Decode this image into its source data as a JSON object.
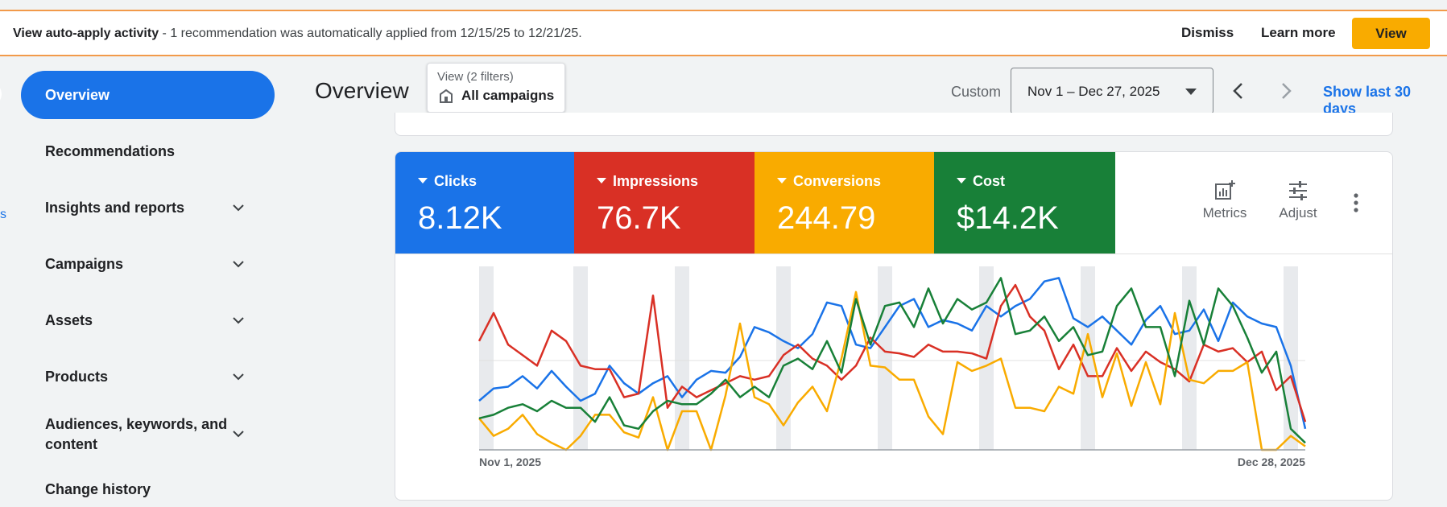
{
  "banner": {
    "title": "View auto-apply activity",
    "message": " - 1 recommendation was automatically applied from 12/15/25 to 12/21/25.",
    "dismiss": "Dismiss",
    "learn_more": "Learn more",
    "view": "View"
  },
  "sidebar": {
    "partial_text": "s",
    "items": [
      {
        "label": "Overview",
        "active": true
      },
      {
        "label": "Recommendations",
        "expandable": false
      },
      {
        "label": "Insights and reports",
        "expandable": true
      },
      {
        "label": "Campaigns",
        "expandable": true
      },
      {
        "label": "Assets",
        "expandable": true
      },
      {
        "label": "Products",
        "expandable": true
      },
      {
        "label": "Audiences, keywords, and",
        "label2": "content",
        "expandable": true
      },
      {
        "label": "Change history",
        "expandable": false
      }
    ]
  },
  "header": {
    "title": "Overview",
    "filter_label": "View (2 filters)",
    "filter_value": "All campaigns",
    "date_mode": "Custom",
    "date_range": "Nov 1 – Dec 27, 2025",
    "show_last": "Show last 30 days"
  },
  "metrics": [
    {
      "name": "Clicks",
      "value": "8.12K",
      "color": "#1a73e8"
    },
    {
      "name": "Impressions",
      "value": "76.7K",
      "color": "#d93025"
    },
    {
      "name": "Conversions",
      "value": "244.79",
      "color": "#f9ab00"
    },
    {
      "name": "Cost",
      "value": "$14.2K",
      "color": "#188038"
    }
  ],
  "tools": {
    "metrics": "Metrics",
    "adjust": "Adjust"
  },
  "chart_data": {
    "type": "line",
    "x_start_label": "Nov 1, 2025",
    "x_end_label": "Dec 28, 2025",
    "ylim": [
      0,
      100
    ],
    "series": [
      {
        "name": "Clicks",
        "color": "#1a73e8",
        "values": [
          28,
          35,
          36,
          42,
          35,
          45,
          36,
          28,
          32,
          48,
          38,
          32,
          38,
          42,
          30,
          40,
          45,
          44,
          53,
          70,
          67,
          62,
          58,
          66,
          84,
          82,
          60,
          58,
          70,
          82,
          86,
          70,
          74,
          72,
          68,
          82,
          76,
          82,
          86,
          96,
          98,
          75,
          70,
          76,
          68,
          60,
          74,
          82,
          66,
          68,
          80,
          62,
          84,
          76,
          72,
          70,
          48,
          12
        ]
      },
      {
        "name": "Impressions",
        "color": "#d93025",
        "values": [
          62,
          78,
          60,
          54,
          48,
          68,
          62,
          48,
          46,
          46,
          30,
          32,
          88,
          24,
          36,
          30,
          34,
          38,
          42,
          40,
          42,
          54,
          60,
          52,
          48,
          40,
          48,
          64,
          56,
          55,
          53,
          60,
          56,
          56,
          55,
          52,
          82,
          94,
          76,
          68,
          46,
          60,
          42,
          42,
          58,
          45,
          56,
          50,
          46,
          39,
          60,
          56,
          58,
          50,
          56,
          34,
          42,
          16
        ]
      },
      {
        "name": "Conversions",
        "color": "#f9ab00",
        "values": [
          18,
          8,
          12,
          20,
          9,
          4,
          0,
          8,
          20,
          20,
          10,
          7,
          30,
          0,
          22,
          22,
          0,
          31,
          72,
          30,
          26,
          14,
          27,
          36,
          22,
          52,
          90,
          48,
          47,
          40,
          40,
          19,
          9,
          50,
          45,
          48,
          52,
          24,
          24,
          22,
          36,
          32,
          66,
          30,
          55,
          25,
          50,
          26,
          78,
          40,
          38,
          45,
          45,
          50,
          0,
          0,
          8,
          2
        ]
      },
      {
        "name": "Cost",
        "color": "#188038",
        "values": [
          18,
          20,
          24,
          26,
          22,
          28,
          24,
          24,
          16,
          30,
          14,
          12,
          22,
          28,
          26,
          26,
          32,
          40,
          30,
          36,
          30,
          48,
          52,
          46,
          62,
          44,
          86,
          60,
          82,
          84,
          70,
          92,
          72,
          86,
          80,
          84,
          98,
          66,
          68,
          76,
          62,
          70,
          54,
          56,
          82,
          92,
          70,
          70,
          42,
          85,
          60,
          92,
          82,
          64,
          44,
          56,
          12,
          4
        ]
      }
    ],
    "weekend_columns": [
      0,
      7,
      14,
      21,
      28,
      35,
      42,
      49,
      56
    ]
  }
}
